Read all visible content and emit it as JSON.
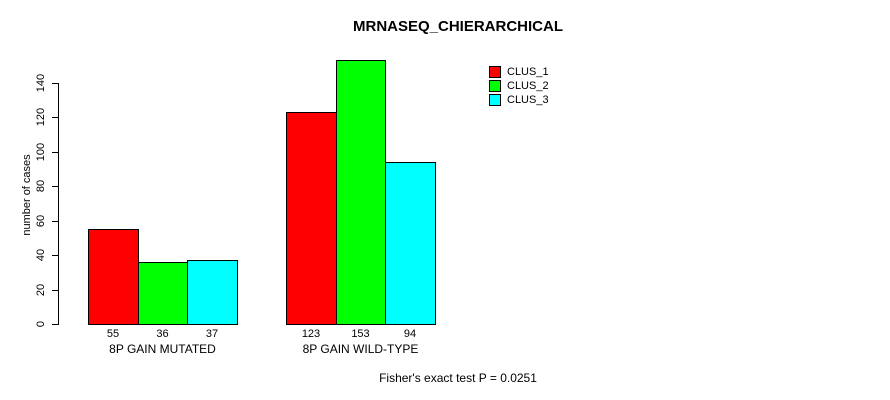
{
  "chart_data": {
    "type": "bar",
    "title": "MRNASEQ_CHIERARCHICAL",
    "ylabel": "number of cases",
    "xlabel": "",
    "categories": [
      "8P GAIN MUTATED",
      "8P GAIN WILD-TYPE"
    ],
    "series": [
      {
        "name": "CLUS_1",
        "color": "#ff0000",
        "values": [
          55,
          123
        ]
      },
      {
        "name": "CLUS_2",
        "color": "#00ff00",
        "values": [
          36,
          153
        ]
      },
      {
        "name": "CLUS_3",
        "color": "#00ffff",
        "values": [
          37,
          94
        ]
      }
    ],
    "bar_value_labels": [
      [
        "55",
        "36",
        "37"
      ],
      [
        "123",
        "153",
        "94"
      ]
    ],
    "yticks": [
      0,
      20,
      40,
      60,
      80,
      100,
      120,
      140
    ],
    "ylim": [
      0,
      155
    ],
    "grid": false,
    "legend_position": "top-right",
    "legend_entries": [
      "CLUS_1",
      "CLUS_2",
      "CLUS_3"
    ],
    "annotation": "Fisher's exact test P = 0.0251"
  },
  "colors": {
    "clus_1": "#ff0000",
    "clus_2": "#00ff00",
    "clus_3": "#00ffff",
    "axis": "#000000",
    "background": "#ffffff"
  }
}
